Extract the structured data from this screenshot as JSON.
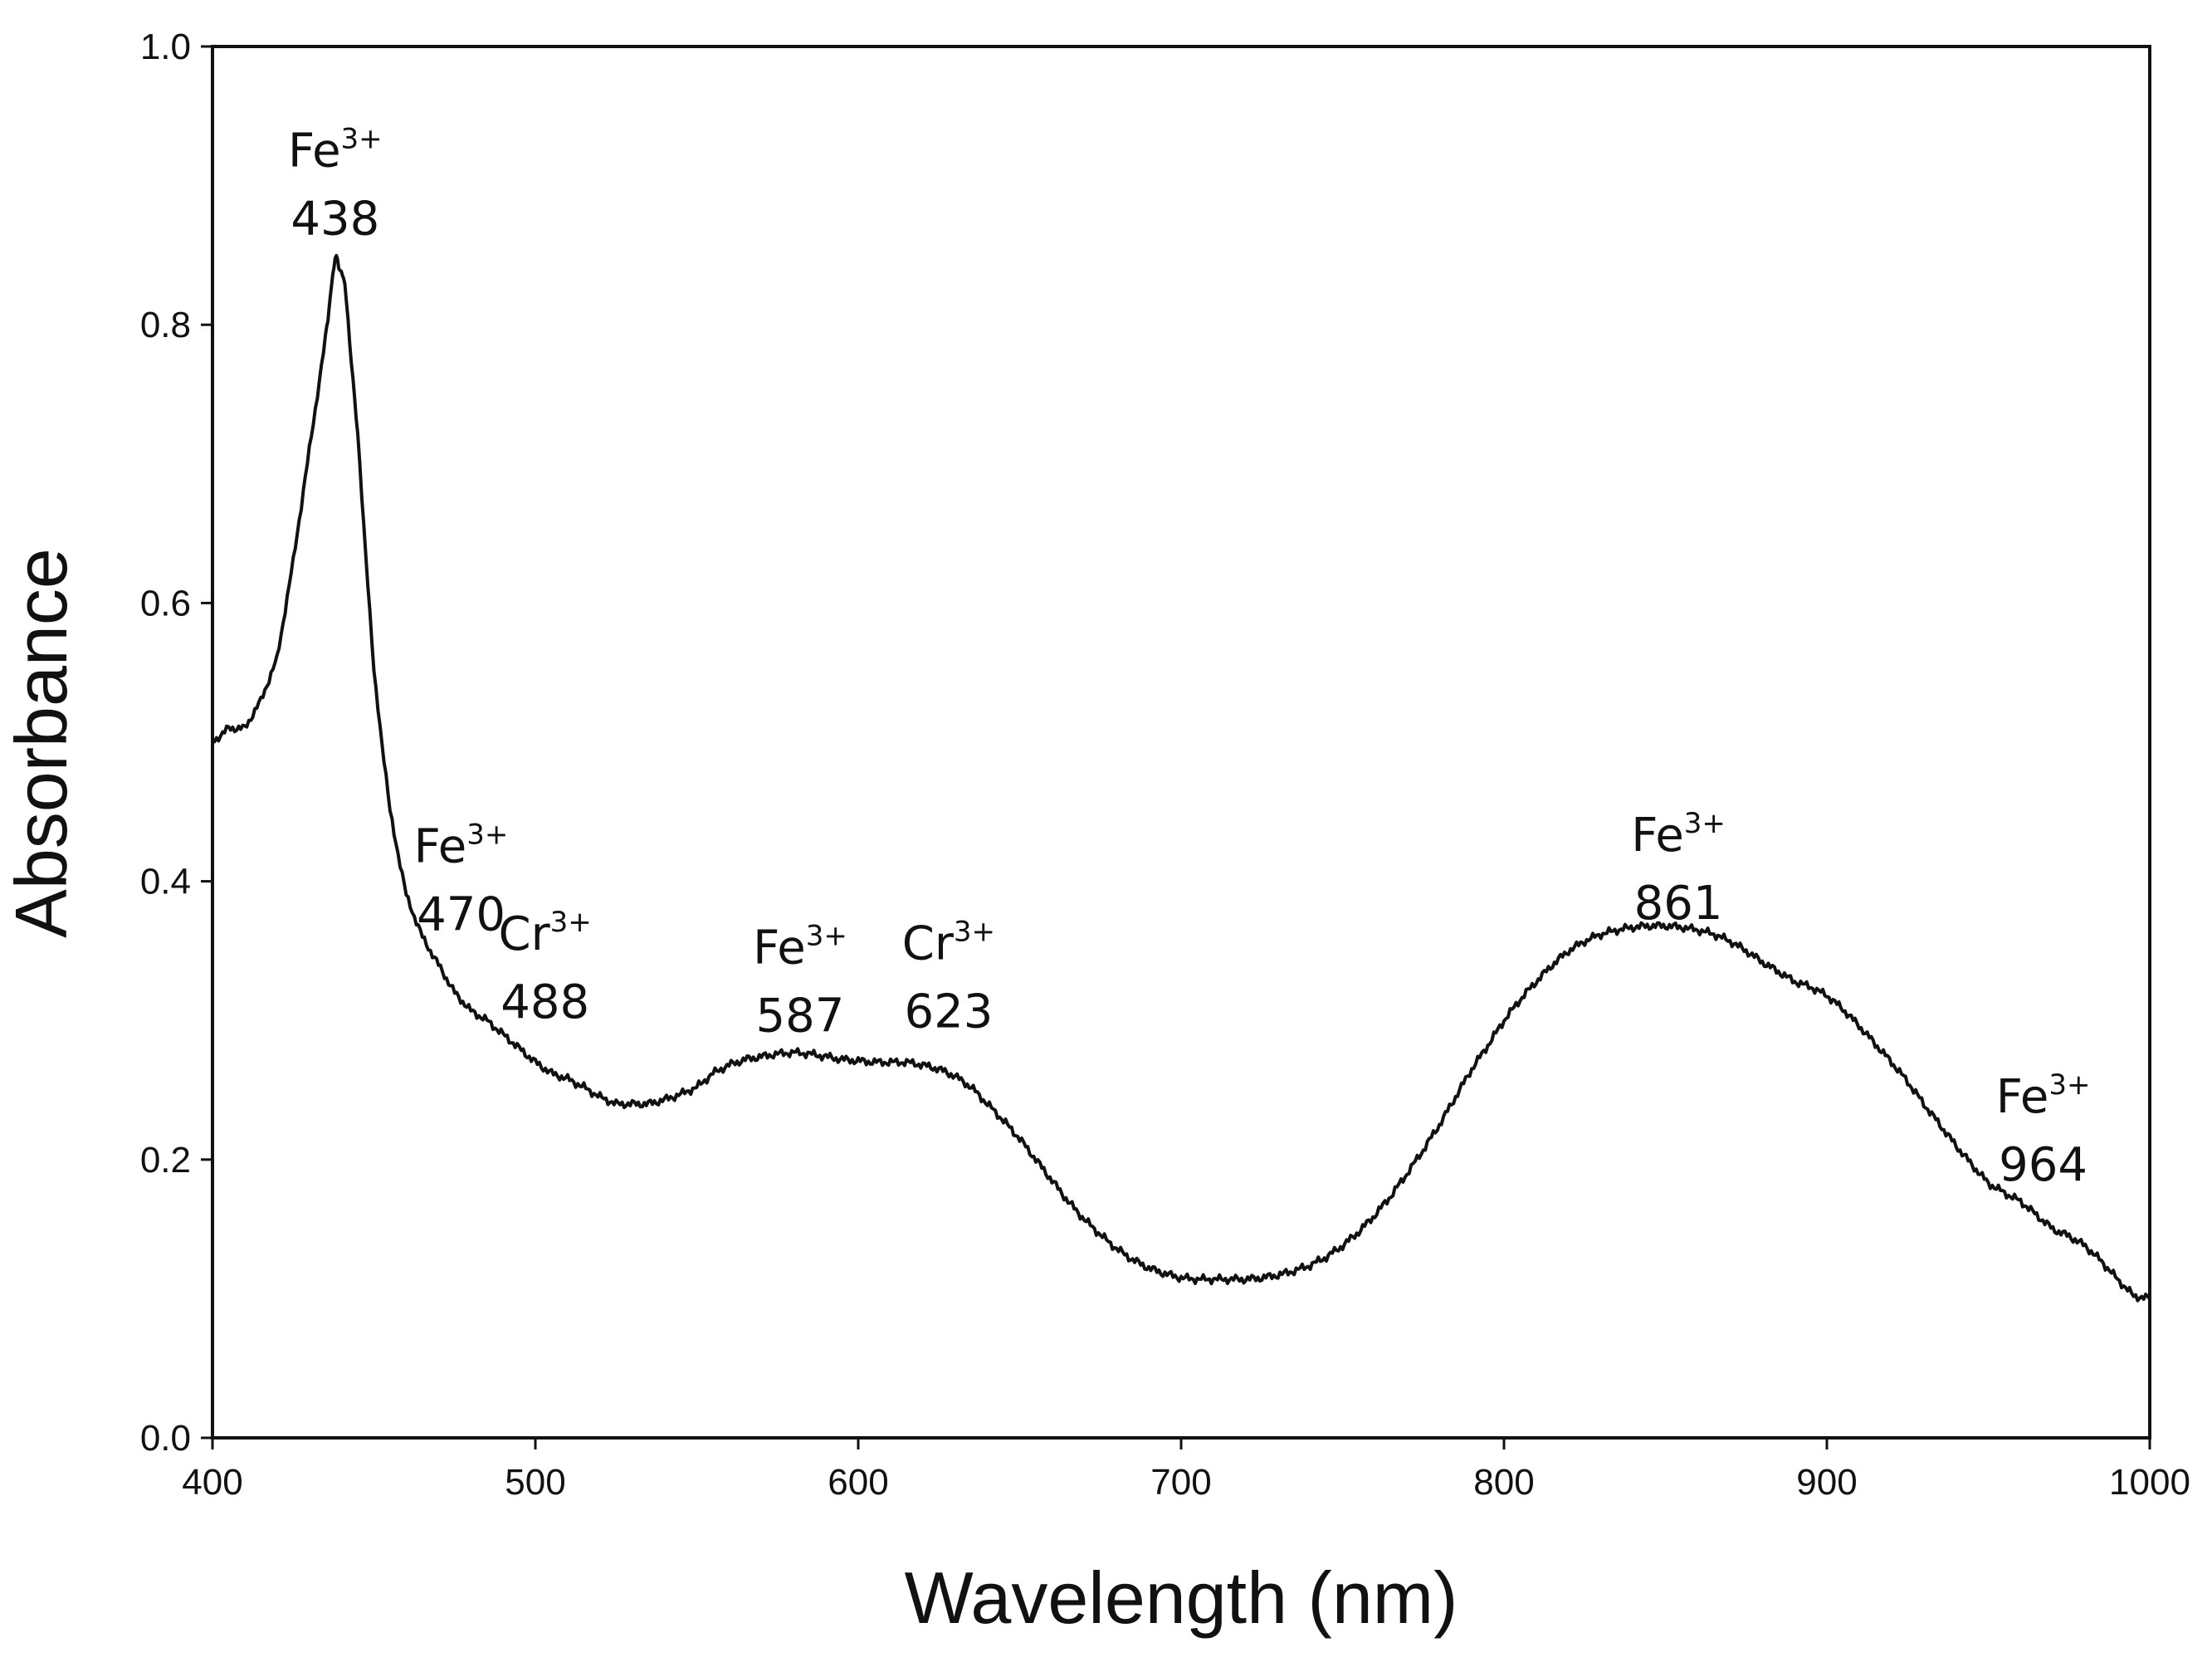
{
  "chart_data": {
    "type": "line",
    "title": "",
    "xlabel": "Wavelength (nm)",
    "ylabel": "Absorbance",
    "xlim": [
      400,
      1000
    ],
    "ylim": [
      0.0,
      1.0
    ],
    "grid": false,
    "legend": "none",
    "color": "#111111",
    "x_ticks": [
      "400",
      "500",
      "600",
      "700",
      "800",
      "900",
      "1000"
    ],
    "y_ticks": [
      "0.0",
      "0.2",
      "0.4",
      "0.6",
      "0.8",
      "1.0"
    ],
    "series": [
      {
        "name": "Absorbance",
        "x": [
          400,
          405,
          410,
          415,
          420,
          425,
          430,
          435,
          438,
          441,
          445,
          450,
          455,
          460,
          465,
          470,
          475,
          480,
          485,
          490,
          495,
          500,
          505,
          510,
          515,
          520,
          525,
          530,
          535,
          540,
          545,
          550,
          555,
          560,
          565,
          570,
          575,
          580,
          585,
          590,
          595,
          600,
          605,
          610,
          615,
          620,
          625,
          630,
          635,
          640,
          645,
          650,
          655,
          660,
          665,
          670,
          675,
          680,
          685,
          690,
          695,
          700,
          705,
          710,
          715,
          720,
          725,
          730,
          735,
          740,
          745,
          750,
          755,
          760,
          765,
          770,
          775,
          780,
          785,
          790,
          795,
          800,
          805,
          810,
          815,
          820,
          825,
          830,
          835,
          840,
          845,
          850,
          855,
          860,
          865,
          870,
          875,
          880,
          885,
          890,
          895,
          900,
          905,
          910,
          915,
          920,
          925,
          930,
          935,
          940,
          945,
          950,
          955,
          960,
          965,
          970,
          975,
          980,
          985,
          990,
          995,
          1000
        ],
        "y": [
          0.5,
          0.51,
          0.51,
          0.53,
          0.56,
          0.63,
          0.71,
          0.79,
          0.85,
          0.83,
          0.72,
          0.55,
          0.45,
          0.39,
          0.36,
          0.34,
          0.32,
          0.307,
          0.3,
          0.29,
          0.28,
          0.27,
          0.262,
          0.258,
          0.252,
          0.245,
          0.24,
          0.24,
          0.24,
          0.243,
          0.247,
          0.252,
          0.262,
          0.268,
          0.272,
          0.274,
          0.276,
          0.277,
          0.276,
          0.274,
          0.272,
          0.271,
          0.27,
          0.27,
          0.27,
          0.268,
          0.265,
          0.26,
          0.252,
          0.24,
          0.228,
          0.215,
          0.2,
          0.185,
          0.17,
          0.157,
          0.146,
          0.136,
          0.128,
          0.122,
          0.118,
          0.115,
          0.114,
          0.114,
          0.114,
          0.114,
          0.115,
          0.117,
          0.12,
          0.124,
          0.13,
          0.138,
          0.148,
          0.16,
          0.174,
          0.19,
          0.207,
          0.225,
          0.245,
          0.265,
          0.282,
          0.3,
          0.315,
          0.328,
          0.34,
          0.35,
          0.357,
          0.362,
          0.365,
          0.367,
          0.368,
          0.368,
          0.367,
          0.365,
          0.362,
          0.357,
          0.35,
          0.342,
          0.335,
          0.328,
          0.324,
          0.318,
          0.308,
          0.296,
          0.283,
          0.27,
          0.256,
          0.24,
          0.225,
          0.21,
          0.196,
          0.183,
          0.176,
          0.17,
          0.16,
          0.15,
          0.145,
          0.138,
          0.127,
          0.114,
          0.102,
          0.1
        ]
      }
    ],
    "annotations": [
      {
        "ion": "Fe",
        "charge": "3+",
        "value": "438",
        "x": 438,
        "y": 0.865
      },
      {
        "ion": "Fe",
        "charge": "3+",
        "value": "470",
        "x": 477,
        "y": 0.365
      },
      {
        "ion": "Cr",
        "charge": "3+",
        "value": "488",
        "x": 503,
        "y": 0.302
      },
      {
        "ion": "Fe",
        "charge": "3+",
        "value": "587",
        "x": 582,
        "y": 0.292
      },
      {
        "ion": "Cr",
        "charge": "3+",
        "value": "623",
        "x": 628,
        "y": 0.295
      },
      {
        "ion": "Fe",
        "charge": "3+",
        "value": "861",
        "x": 854,
        "y": 0.373
      },
      {
        "ion": "Fe",
        "charge": "3+",
        "value": "964",
        "x": 967,
        "y": 0.185
      }
    ]
  }
}
